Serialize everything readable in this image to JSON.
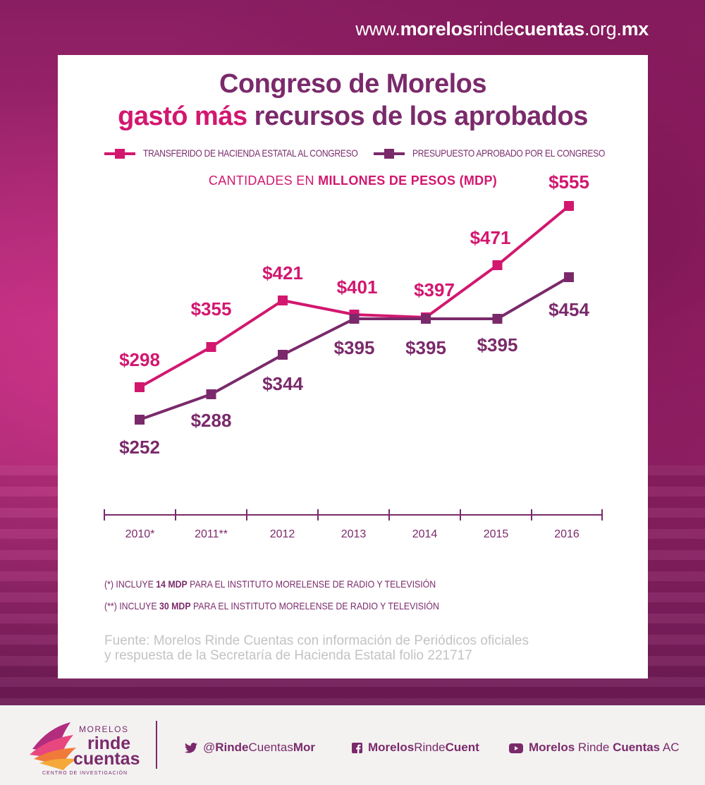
{
  "site_url": {
    "pre": "www.",
    "b1": "morelos",
    "mid": "rinde",
    "b2": "cuentas",
    "mid2": ".org.",
    "b3": "mx"
  },
  "title_line1": "Congreso de Morelos",
  "title_line2_highlight": "gastó más",
  "title_line2_rest": " recursos de los aprobados",
  "legend": {
    "transferido": "TRANSFERIDO DE HACIENDA ESTATAL AL CONGRESO",
    "aprobado": "PRESUPUESTO APROBADO POR EL CONGRESO"
  },
  "subtitle_pre": "CANTIDADES EN ",
  "subtitle_bold": "MILLONES DE PESOS (MDP)",
  "colors": {
    "transferido": "#d2176f",
    "aprobado": "#7a2a6b"
  },
  "chart_data": {
    "type": "line",
    "categories": [
      "2010*",
      "2011**",
      "2012",
      "2013",
      "2014",
      "2015",
      "2016"
    ],
    "series": [
      {
        "name": "TRANSFERIDO DE HACIENDA ESTATAL AL CONGRESO",
        "values": [
          298,
          355,
          421,
          401,
          397,
          471,
          555
        ],
        "labels": [
          "$298",
          "$355",
          "$421",
          "$401",
          "$397",
          "$471",
          "$555"
        ],
        "label_position": "above"
      },
      {
        "name": "PRESUPUESTO APROBADO POR EL CONGRESO",
        "values": [
          252,
          288,
          344,
          395,
          395,
          395,
          454
        ],
        "labels": [
          "$252",
          "$288",
          "$344",
          "$395",
          "$395",
          "$395",
          "$454"
        ],
        "label_position": "below"
      }
    ],
    "ylim": [
      200,
      600
    ],
    "grid": false,
    "legend_position": "top"
  },
  "notes": [
    {
      "prefix": "(*)  INCLUYE ",
      "bold": "14 MDP",
      "rest": " PARA EL INSTITUTO MORELENSE DE RADIO Y TELEVISIÓN"
    },
    {
      "prefix": "(**)  INCLUYE ",
      "bold": "30 MDP",
      "rest": " PARA EL INSTITUTO MORELENSE DE RADIO Y TELEVISIÓN"
    }
  ],
  "source_line1": "Fuente: Morelos Rinde Cuentas con información de Periódicos oficiales",
  "source_line2": "y respuesta de la Secretaría de Hacienda Estatal folio 221717",
  "logo": {
    "line1": "MORELOS",
    "line2": "rinde",
    "line3": "cuentas",
    "line4": "CENTRO DE INVESTIGACIÓN"
  },
  "social": {
    "twitter": {
      "pre": "@",
      "b": "Rinde",
      "mid": "Cuentas",
      "b2": "Mor",
      "icon": "twitter-icon"
    },
    "facebook": {
      "b": "Morelos",
      "mid": "Rinde",
      "b2": "Cuent",
      "icon": "facebook-icon"
    },
    "youtube": {
      "b": "Morelos",
      "mid": " Rinde ",
      "b2": "Cuentas",
      "rest": " AC",
      "icon": "youtube-icon"
    }
  }
}
